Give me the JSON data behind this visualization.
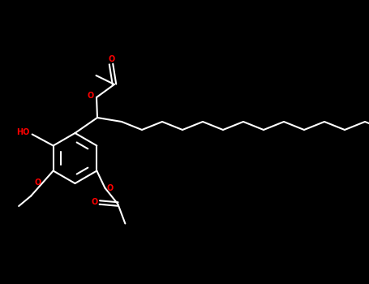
{
  "bg_color": "#000000",
  "line_color": "#ffffff",
  "o_color": "#ff0000",
  "lw": 1.5,
  "fig_w": 4.55,
  "fig_h": 3.5,
  "dpi": 100,
  "xlim": [
    0,
    9.1
  ],
  "ylim": [
    0,
    7.0
  ]
}
